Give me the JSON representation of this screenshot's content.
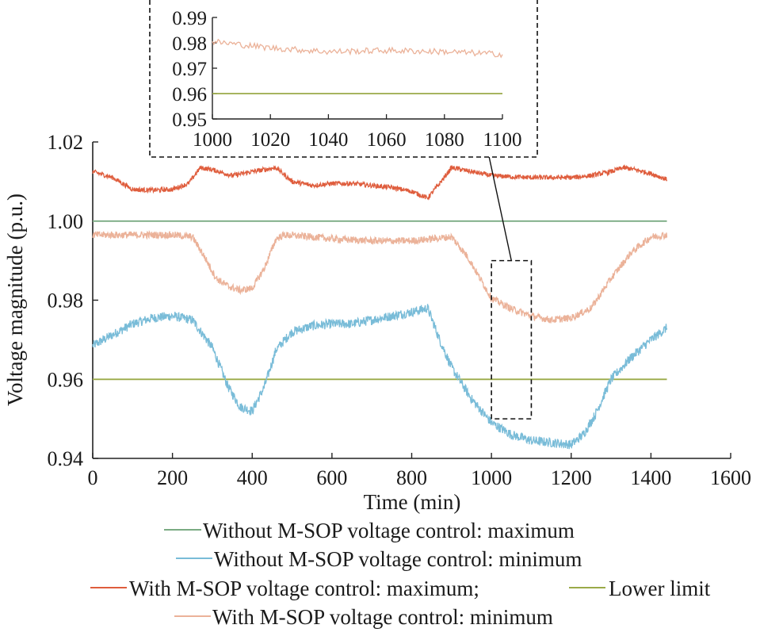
{
  "chart_data": {
    "type": "line",
    "xlabel": "Time (min)",
    "ylabel": "Voltage magnitude (p.u.)",
    "xlim": [
      0,
      1600
    ],
    "ylim": [
      0.94,
      1.02
    ],
    "xticks": [
      "0",
      "200",
      "400",
      "600",
      "800",
      "1000",
      "1200",
      "1400",
      "1600"
    ],
    "yticks": [
      "0.94",
      "0.96",
      "0.98",
      "1.00",
      "1.02"
    ],
    "colors": {
      "without_max": "#7aab83",
      "without_min": "#79bcd8",
      "with_max": "#df5d3d",
      "with_min": "#ebb299",
      "lower_limit": "#9aaa48",
      "upper_line": "#8cc26b"
    },
    "series": [
      {
        "name": "Without M-SOP voltage control: maximum",
        "color_key": "without_max",
        "x": [
          0,
          1440
        ],
        "y": [
          1.0,
          1.0
        ]
      },
      {
        "name": "Without M-SOP voltage control: minimum",
        "color_key": "without_min",
        "x": [
          0,
          100,
          150,
          200,
          250,
          300,
          340,
          370,
          400,
          430,
          460,
          500,
          550,
          600,
          650,
          700,
          750,
          800,
          840,
          870,
          900,
          950,
          1000,
          1050,
          1100,
          1150,
          1200,
          1230,
          1260,
          1300,
          1350,
          1400,
          1440
        ],
        "y": [
          0.9685,
          0.974,
          0.9755,
          0.976,
          0.975,
          0.968,
          0.958,
          0.953,
          0.952,
          0.958,
          0.9675,
          0.972,
          0.9735,
          0.974,
          0.974,
          0.975,
          0.976,
          0.977,
          0.978,
          0.97,
          0.963,
          0.955,
          0.949,
          0.946,
          0.9445,
          0.944,
          0.9435,
          0.946,
          0.951,
          0.96,
          0.9655,
          0.97,
          0.973
        ],
        "noise": 0.0012
      },
      {
        "name": "With M-SOP voltage control: maximum",
        "color_key": "with_max",
        "x": [
          0,
          50,
          100,
          150,
          200,
          240,
          270,
          300,
          350,
          400,
          460,
          500,
          550,
          600,
          650,
          700,
          750,
          800,
          840,
          870,
          900,
          950,
          1000,
          1050,
          1100,
          1150,
          1200,
          1250,
          1300,
          1330,
          1360,
          1400,
          1440
        ],
        "y": [
          1.0125,
          1.011,
          1.008,
          1.0078,
          1.008,
          1.0095,
          1.0135,
          1.013,
          1.0115,
          1.0125,
          1.0135,
          1.01,
          1.009,
          1.0095,
          1.0095,
          1.009,
          1.0085,
          1.0075,
          1.0058,
          1.0095,
          1.0135,
          1.0125,
          1.0115,
          1.0112,
          1.011,
          1.011,
          1.011,
          1.0115,
          1.0125,
          1.0135,
          1.013,
          1.012,
          1.0105
        ],
        "noise": 0.0006
      },
      {
        "name": "With M-SOP voltage control: minimum",
        "color_key": "with_min",
        "x": [
          0,
          100,
          200,
          250,
          280,
          310,
          340,
          370,
          400,
          430,
          460,
          480,
          550,
          600,
          700,
          800,
          850,
          900,
          940,
          980,
          1000,
          1050,
          1100,
          1150,
          1200,
          1250,
          1300,
          1350,
          1400,
          1440
        ],
        "y": [
          0.9965,
          0.9965,
          0.9965,
          0.996,
          0.991,
          0.9855,
          0.9835,
          0.9825,
          0.983,
          0.988,
          0.9955,
          0.9965,
          0.996,
          0.9955,
          0.995,
          0.995,
          0.9955,
          0.996,
          0.991,
          0.984,
          0.9805,
          0.9778,
          0.976,
          0.975,
          0.9755,
          0.978,
          0.9855,
          0.992,
          0.996,
          0.9965
        ],
        "noise": 0.0009
      },
      {
        "name": "Lower limit",
        "color_key": "lower_limit",
        "x": [
          0,
          1440
        ],
        "y": [
          0.96,
          0.96
        ]
      }
    ],
    "legend": {
      "placement": "bottom",
      "rows": [
        "Without M-SOP voltage control: maximum",
        "Without M-SOP voltage control: minimum",
        "With M-SOP voltage control: maximum;",
        "Lower limit",
        "With M-SOP voltage control: minimum"
      ]
    },
    "zoom_box": {
      "x": [
        1000,
        1100
      ],
      "y": [
        0.95,
        0.99
      ]
    },
    "inset": {
      "xlim": [
        1000,
        1100
      ],
      "ylim": [
        0.95,
        0.99
      ],
      "xticks": [
        "1000",
        "1020",
        "1040",
        "1060",
        "1080",
        "1100"
      ],
      "yticks": [
        "0.95",
        "0.96",
        "0.97",
        "0.98",
        "0.99"
      ],
      "series": [
        {
          "name": "With M-SOP voltage control: minimum",
          "color_key": "with_min",
          "x": [
            1000,
            1020,
            1040,
            1060,
            1080,
            1100
          ],
          "y": [
            0.9805,
            0.978,
            0.9765,
            0.977,
            0.9765,
            0.9755
          ],
          "noise": 0.0012
        },
        {
          "name": "Lower limit",
          "color_key": "lower_limit",
          "x": [
            1000,
            1100
          ],
          "y": [
            0.96,
            0.96
          ]
        }
      ]
    }
  }
}
